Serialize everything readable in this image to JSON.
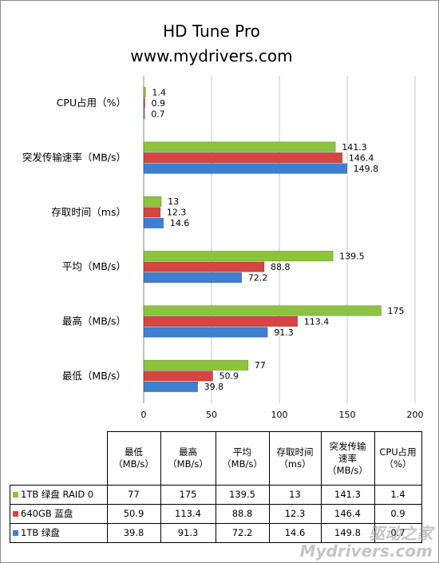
{
  "chart_data": {
    "type": "bar",
    "orientation": "horizontal",
    "title": "HD Tune Pro",
    "subtitle": "www.mydrivers.com",
    "categories": [
      "CPU占用（%）",
      "突发传输速率（MB/s）",
      "存取时间（ms）",
      "平均（MB/s）",
      "最高（MB/s）",
      "最低（MB/s）"
    ],
    "series": [
      {
        "name": "1TB 绿盘 RAID 0",
        "color": "#8cc43c",
        "values": [
          1.4,
          141.3,
          13,
          139.5,
          175,
          77
        ]
      },
      {
        "name": "640GB 蓝盘",
        "color": "#d64541",
        "values": [
          0.9,
          146.4,
          12.3,
          88.8,
          113.4,
          50.9
        ]
      },
      {
        "name": "1TB 绿盘",
        "color": "#3f7fd3",
        "values": [
          0.7,
          149.8,
          14.6,
          72.2,
          91.3,
          39.8
        ]
      }
    ],
    "xlim": [
      0,
      200
    ],
    "xticks": [
      "0",
      "50",
      "100",
      "150",
      "200"
    ],
    "grid": true,
    "legend": "table-below"
  },
  "table": {
    "headers": [
      [
        "最低",
        "（MB/s）"
      ],
      [
        "最高",
        "（MB/s）"
      ],
      [
        "平均",
        "（MB/s）"
      ],
      [
        "存取时间",
        "（ms）"
      ],
      [
        "突发传输",
        "速率",
        "（MB/s）"
      ],
      [
        "CPU占用",
        "（%）"
      ]
    ],
    "rows": [
      {
        "label": "1TB 绿盘 RAID 0",
        "color": "#8cc43c",
        "cells": [
          "77",
          "175",
          "139.5",
          "13",
          "141.3",
          "1.4"
        ]
      },
      {
        "label": "640GB 蓝盘",
        "color": "#d64541",
        "cells": [
          "50.9",
          "113.4",
          "88.8",
          "12.3",
          "146.4",
          "0.9"
        ]
      },
      {
        "label": "1TB 绿盘",
        "color": "#3f7fd3",
        "cells": [
          "39.8",
          "91.3",
          "72.2",
          "14.6",
          "149.8",
          "0.7"
        ]
      }
    ]
  },
  "watermark": {
    "line1": "驱动之家",
    "line2": "Mydrivers.com"
  }
}
